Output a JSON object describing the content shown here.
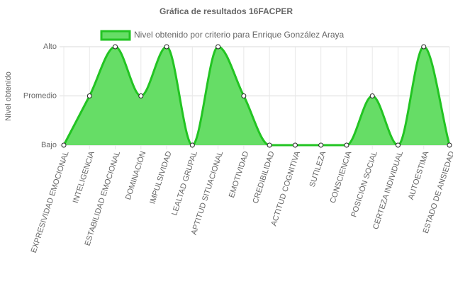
{
  "chart_data": {
    "type": "line",
    "title": "Gráfica de resultados 16FACPER",
    "y_label": "Nivel obtenido",
    "categories": [
      "EXPRESIVIDAD EMOCIONAL",
      "INTELIGENCIA",
      "ESTABILIDAD EMOCIONAL",
      "DOMINACIÓN",
      "IMPULSIVIDAD",
      "LEALTAD GRUPAL",
      "APTITUD SITUACIONAL",
      "EMOTIVIDAD",
      "CREDIBILIDAD",
      "ACTITUD COGNITIVA",
      "SUTILEZA",
      "CONSCIENCIA",
      "POSICIÓN SOCIAL",
      "CERTEZA INDIVIDUAL",
      "AUTOESTIMA",
      "ESTADO DE ANSIEDAD"
    ],
    "series": [
      {
        "name": "Nivel obtenido por criterio para Enrique González Araya",
        "color": "#22c422",
        "fill_color": "#66dd66",
        "values": [
          0,
          1,
          2,
          1,
          2,
          0,
          2,
          1,
          0,
          0,
          0,
          0,
          1,
          0,
          2,
          0
        ]
      }
    ],
    "ylim": [
      0,
      2
    ],
    "yticks": [
      {
        "value": 0,
        "label": "Bajo"
      },
      {
        "value": 1,
        "label": "Promedio"
      },
      {
        "value": 2,
        "label": "Alto"
      }
    ],
    "grid": true
  }
}
